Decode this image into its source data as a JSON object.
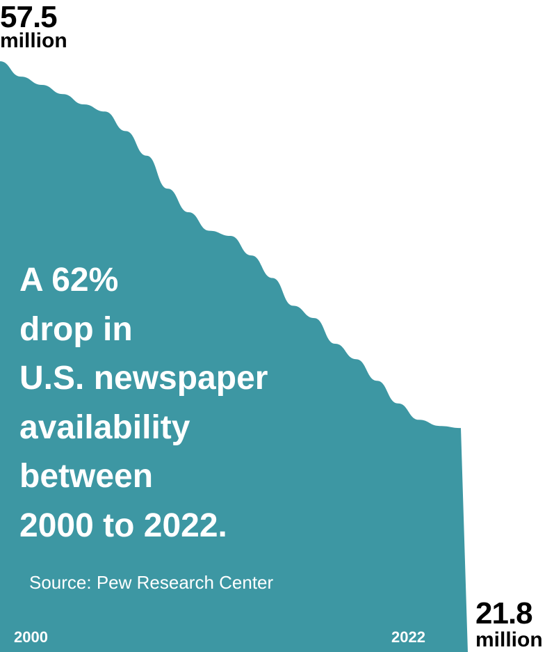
{
  "colors": {
    "area": "#3d97a3",
    "text_on_area": "#ffffff",
    "text": "#000000"
  },
  "headline_lines": [
    "A 62%",
    "drop in",
    "U.S. newspaper",
    "availability",
    "between",
    "2000 to 2022."
  ],
  "source": "Source: Pew Research Center",
  "start_label": {
    "value": "57.5",
    "unit": "million"
  },
  "end_label": {
    "value": "21.8",
    "unit": "million"
  },
  "chart_data": {
    "type": "area",
    "title": "",
    "xlabel": "",
    "ylabel": "",
    "x_tick_labels": [
      "2000",
      "2022"
    ],
    "x": [
      2000,
      2001,
      2002,
      2003,
      2004,
      2005,
      2006,
      2007,
      2008,
      2009,
      2010,
      2011,
      2012,
      2013,
      2014,
      2015,
      2016,
      2017,
      2018,
      2019,
      2020,
      2021,
      2022
    ],
    "series": [
      {
        "values": [
          57.5,
          56.0,
          55.2,
          54.3,
          53.3,
          52.6,
          50.7,
          48.3,
          45.1,
          42.8,
          41.0,
          40.5,
          38.6,
          36.4,
          33.7,
          32.5,
          30.0,
          28.5,
          26.4,
          24.2,
          22.6,
          22.0,
          21.8
        ]
      }
    ],
    "ylim": [
      0,
      57.5
    ],
    "grid": false,
    "legend": "none"
  }
}
